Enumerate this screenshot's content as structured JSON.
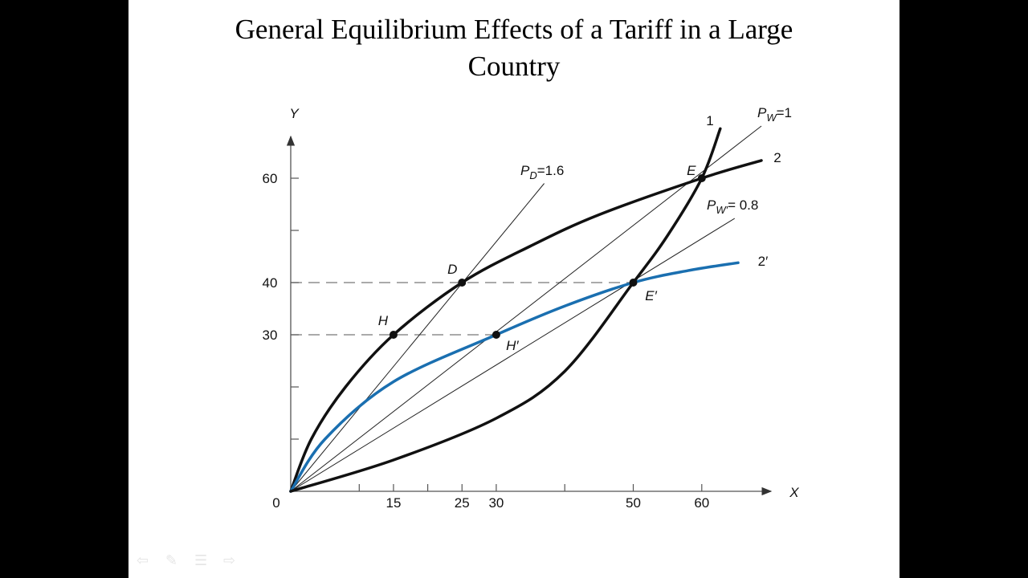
{
  "slide": {
    "title_line1": "General Equilibrium Effects of a Tariff in a Large",
    "title_line2": "Country"
  },
  "nav": {
    "icons": [
      "back-arrow-icon",
      "pen-icon",
      "menu-icon",
      "forward-arrow-icon"
    ]
  },
  "colors": {
    "curve": "#111111",
    "blue_curve": "#1a6fb0",
    "axis": "#555555",
    "dash": "#777777"
  },
  "chart_data": {
    "type": "line",
    "title": "General Equilibrium Effects of a Tariff in a Large Country",
    "xlabel": "X",
    "ylabel": "Y",
    "xlim": [
      0,
      70
    ],
    "ylim": [
      0,
      72
    ],
    "x_ticks": [
      10,
      15,
      20,
      25,
      30,
      40,
      50,
      60
    ],
    "x_tick_labels": [
      {
        "v": 0,
        "t": "0"
      },
      {
        "v": 15,
        "t": "15"
      },
      {
        "v": 25,
        "t": "25"
      },
      {
        "v": 30,
        "t": "30"
      },
      {
        "v": 50,
        "t": "50"
      },
      {
        "v": 60,
        "t": "60"
      }
    ],
    "y_ticks": [
      10,
      20,
      30,
      40,
      50,
      60
    ],
    "y_tick_labels": [
      {
        "v": 30,
        "t": "30"
      },
      {
        "v": 40,
        "t": "40"
      },
      {
        "v": 60,
        "t": "60"
      }
    ],
    "grid": false,
    "curves": [
      {
        "name": "curve-2",
        "label": "2",
        "style": "thick-black",
        "points": [
          [
            0,
            0
          ],
          [
            3,
            10
          ],
          [
            8,
            20
          ],
          [
            15,
            30
          ],
          [
            25,
            40
          ],
          [
            35,
            47
          ],
          [
            45,
            53
          ],
          [
            60,
            60
          ],
          [
            68.7,
            63.4
          ]
        ]
      },
      {
        "name": "curve-2-prime",
        "label": "2′",
        "style": "thick-blue",
        "points": [
          [
            0,
            0
          ],
          [
            5,
            10
          ],
          [
            15,
            21
          ],
          [
            30,
            30
          ],
          [
            40,
            35.5
          ],
          [
            50,
            40
          ],
          [
            58,
            42.3
          ],
          [
            65.3,
            43.8
          ]
        ]
      },
      {
        "name": "curve-1",
        "label": "1",
        "style": "thick-black",
        "points": [
          [
            0,
            0
          ],
          [
            15,
            6
          ],
          [
            30,
            14
          ],
          [
            40,
            23
          ],
          [
            50,
            40
          ],
          [
            55,
            49
          ],
          [
            60,
            60
          ],
          [
            62.7,
            69.5
          ]
        ]
      }
    ],
    "rays": [
      {
        "name": "ray-pd",
        "label_main": "P",
        "label_sub": "D",
        "label_val": "=1.6",
        "end": [
          37,
          59
        ]
      },
      {
        "name": "ray-pw",
        "label_main": "P",
        "label_sub": "W",
        "label_val": "=1",
        "end": [
          68.7,
          70
        ]
      },
      {
        "name": "ray-pw-prime",
        "label_main": "P",
        "label_sub": "W′",
        "label_val": "= 0.8",
        "end": [
          64.8,
          52.3
        ]
      }
    ],
    "dashed_lines": [
      {
        "y": 40,
        "x_end": 50
      },
      {
        "y": 30,
        "x_end": 30
      }
    ],
    "points": [
      {
        "name": "H",
        "label": "H",
        "x": 15,
        "y": 30
      },
      {
        "name": "D",
        "label": "D",
        "x": 25,
        "y": 40
      },
      {
        "name": "H-prime",
        "label": "H′",
        "x": 30,
        "y": 30
      },
      {
        "name": "E-prime",
        "label": "E′",
        "x": 50,
        "y": 40
      },
      {
        "name": "E",
        "label": "E",
        "x": 60,
        "y": 60
      }
    ],
    "origin_label": "0"
  }
}
